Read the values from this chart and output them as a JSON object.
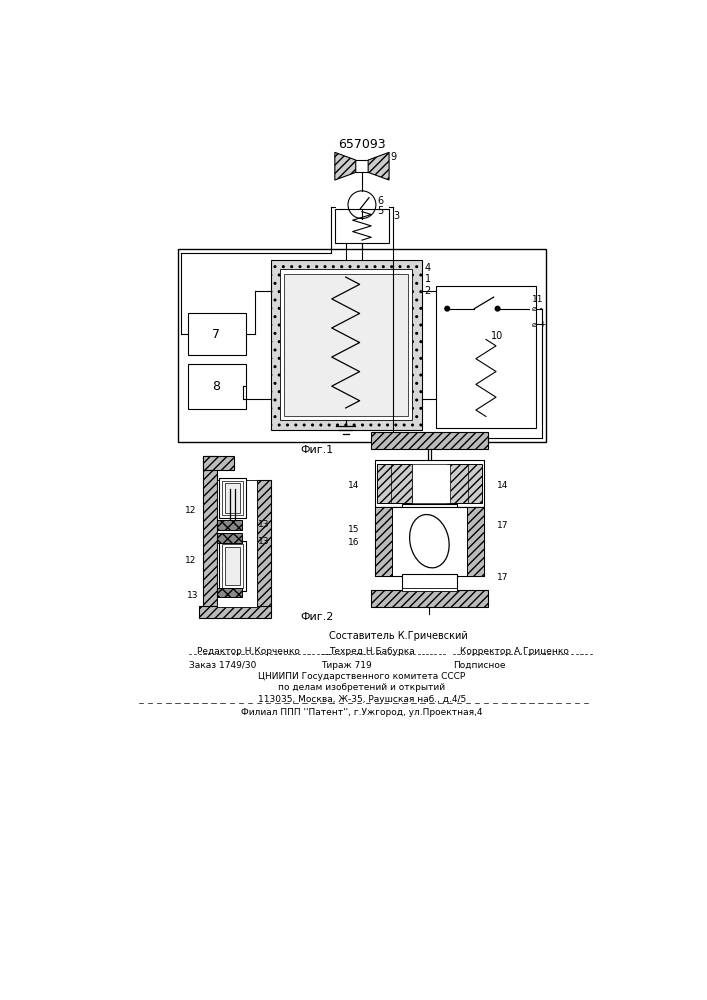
{
  "patent_number": "657093",
  "fig1_label": "Фиг.1",
  "fig2_label": "Фиг.2",
  "footer_lines": [
    "Составитель К.Гричевский",
    "Редактор Н.Корченко",
    "Техред Н.Бабурка",
    "Корректор А.Гриценко",
    "Заказ 1749/30",
    "Тираж 719",
    "Подписное",
    "ЦНИИПИ Государственного комитета СССР",
    "по делам изобретений и открытий",
    "113035, Москва, Ж-35, Раушская наб., д.4/5",
    "Филиал ППП ''Патент'', г.Ужгород, ул.Проектная,4"
  ],
  "bg_color": "#ffffff"
}
